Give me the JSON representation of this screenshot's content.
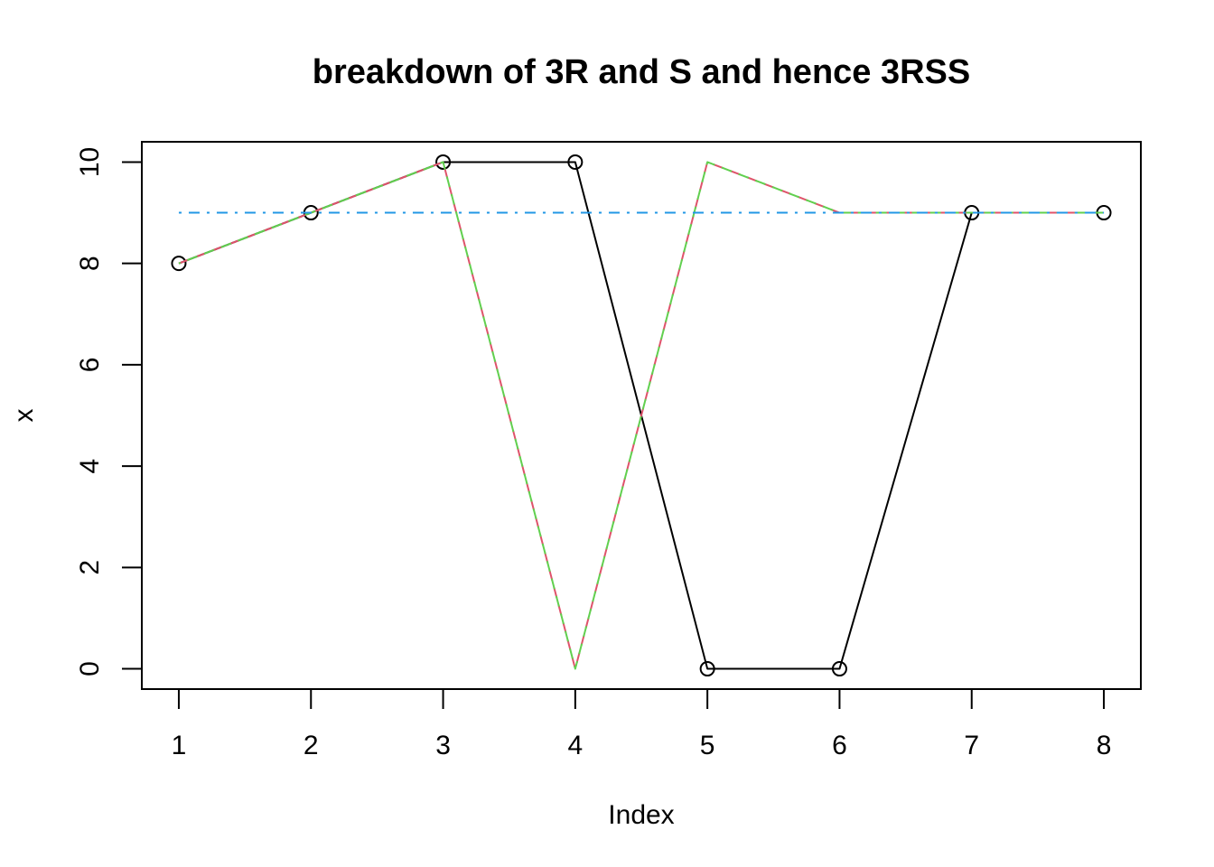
{
  "chart_data": {
    "type": "line",
    "title": "breakdown of  3R  and  S  and hence  3RSS",
    "xlabel": "Index",
    "ylabel": "x",
    "x": [
      1,
      2,
      3,
      4,
      5,
      6,
      7,
      8
    ],
    "xlim": [
      0.72,
      8.28
    ],
    "ylim": [
      -0.4,
      10.4
    ],
    "xticks": [
      1,
      2,
      3,
      4,
      5,
      6,
      7,
      8
    ],
    "yticks": [
      0,
      2,
      4,
      6,
      8,
      10
    ],
    "grid": false,
    "series": [
      {
        "values": [
          8,
          9,
          10,
          10,
          0,
          0,
          9,
          9
        ],
        "color": "#000000",
        "style": "solid",
        "markers": "open-circle"
      },
      {
        "values": [
          8,
          9,
          10,
          0,
          10,
          9,
          9,
          9
        ],
        "color": "#DF536B",
        "style": "dashed",
        "markers": "none"
      },
      {
        "values": [
          8,
          9,
          10,
          0,
          10,
          9,
          9,
          9
        ],
        "color": "#61D04F",
        "style": "dashed-offset",
        "markers": "none"
      },
      {
        "values": [
          9,
          9,
          9,
          9,
          9,
          9,
          9,
          9
        ],
        "color": "#2297E6",
        "style": "dotdash",
        "markers": "none"
      }
    ]
  }
}
